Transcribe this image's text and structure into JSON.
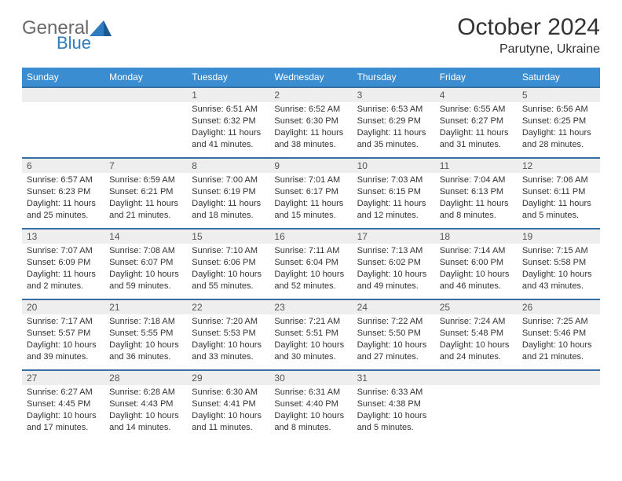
{
  "header": {
    "logo_general": "General",
    "logo_blue": "Blue",
    "month_title": "October 2024",
    "location": "Parutyne, Ukraine"
  },
  "colors": {
    "header_bg": "#3a8dd0",
    "header_text": "#ffffff",
    "row_divider": "#356fa3",
    "daynum_bg": "#eeeeee",
    "body_text": "#333333",
    "logo_gray": "#6a6a6a",
    "logo_blue": "#2f7bbf",
    "page_bg": "#ffffff"
  },
  "weekdays": [
    "Sunday",
    "Monday",
    "Tuesday",
    "Wednesday",
    "Thursday",
    "Friday",
    "Saturday"
  ],
  "weeks": [
    [
      null,
      null,
      {
        "n": "1",
        "sunrise": "Sunrise: 6:51 AM",
        "sunset": "Sunset: 6:32 PM",
        "dl1": "Daylight: 11 hours",
        "dl2": "and 41 minutes."
      },
      {
        "n": "2",
        "sunrise": "Sunrise: 6:52 AM",
        "sunset": "Sunset: 6:30 PM",
        "dl1": "Daylight: 11 hours",
        "dl2": "and 38 minutes."
      },
      {
        "n": "3",
        "sunrise": "Sunrise: 6:53 AM",
        "sunset": "Sunset: 6:29 PM",
        "dl1": "Daylight: 11 hours",
        "dl2": "and 35 minutes."
      },
      {
        "n": "4",
        "sunrise": "Sunrise: 6:55 AM",
        "sunset": "Sunset: 6:27 PM",
        "dl1": "Daylight: 11 hours",
        "dl2": "and 31 minutes."
      },
      {
        "n": "5",
        "sunrise": "Sunrise: 6:56 AM",
        "sunset": "Sunset: 6:25 PM",
        "dl1": "Daylight: 11 hours",
        "dl2": "and 28 minutes."
      }
    ],
    [
      {
        "n": "6",
        "sunrise": "Sunrise: 6:57 AM",
        "sunset": "Sunset: 6:23 PM",
        "dl1": "Daylight: 11 hours",
        "dl2": "and 25 minutes."
      },
      {
        "n": "7",
        "sunrise": "Sunrise: 6:59 AM",
        "sunset": "Sunset: 6:21 PM",
        "dl1": "Daylight: 11 hours",
        "dl2": "and 21 minutes."
      },
      {
        "n": "8",
        "sunrise": "Sunrise: 7:00 AM",
        "sunset": "Sunset: 6:19 PM",
        "dl1": "Daylight: 11 hours",
        "dl2": "and 18 minutes."
      },
      {
        "n": "9",
        "sunrise": "Sunrise: 7:01 AM",
        "sunset": "Sunset: 6:17 PM",
        "dl1": "Daylight: 11 hours",
        "dl2": "and 15 minutes."
      },
      {
        "n": "10",
        "sunrise": "Sunrise: 7:03 AM",
        "sunset": "Sunset: 6:15 PM",
        "dl1": "Daylight: 11 hours",
        "dl2": "and 12 minutes."
      },
      {
        "n": "11",
        "sunrise": "Sunrise: 7:04 AM",
        "sunset": "Sunset: 6:13 PM",
        "dl1": "Daylight: 11 hours",
        "dl2": "and 8 minutes."
      },
      {
        "n": "12",
        "sunrise": "Sunrise: 7:06 AM",
        "sunset": "Sunset: 6:11 PM",
        "dl1": "Daylight: 11 hours",
        "dl2": "and 5 minutes."
      }
    ],
    [
      {
        "n": "13",
        "sunrise": "Sunrise: 7:07 AM",
        "sunset": "Sunset: 6:09 PM",
        "dl1": "Daylight: 11 hours",
        "dl2": "and 2 minutes."
      },
      {
        "n": "14",
        "sunrise": "Sunrise: 7:08 AM",
        "sunset": "Sunset: 6:07 PM",
        "dl1": "Daylight: 10 hours",
        "dl2": "and 59 minutes."
      },
      {
        "n": "15",
        "sunrise": "Sunrise: 7:10 AM",
        "sunset": "Sunset: 6:06 PM",
        "dl1": "Daylight: 10 hours",
        "dl2": "and 55 minutes."
      },
      {
        "n": "16",
        "sunrise": "Sunrise: 7:11 AM",
        "sunset": "Sunset: 6:04 PM",
        "dl1": "Daylight: 10 hours",
        "dl2": "and 52 minutes."
      },
      {
        "n": "17",
        "sunrise": "Sunrise: 7:13 AM",
        "sunset": "Sunset: 6:02 PM",
        "dl1": "Daylight: 10 hours",
        "dl2": "and 49 minutes."
      },
      {
        "n": "18",
        "sunrise": "Sunrise: 7:14 AM",
        "sunset": "Sunset: 6:00 PM",
        "dl1": "Daylight: 10 hours",
        "dl2": "and 46 minutes."
      },
      {
        "n": "19",
        "sunrise": "Sunrise: 7:15 AM",
        "sunset": "Sunset: 5:58 PM",
        "dl1": "Daylight: 10 hours",
        "dl2": "and 43 minutes."
      }
    ],
    [
      {
        "n": "20",
        "sunrise": "Sunrise: 7:17 AM",
        "sunset": "Sunset: 5:57 PM",
        "dl1": "Daylight: 10 hours",
        "dl2": "and 39 minutes."
      },
      {
        "n": "21",
        "sunrise": "Sunrise: 7:18 AM",
        "sunset": "Sunset: 5:55 PM",
        "dl1": "Daylight: 10 hours",
        "dl2": "and 36 minutes."
      },
      {
        "n": "22",
        "sunrise": "Sunrise: 7:20 AM",
        "sunset": "Sunset: 5:53 PM",
        "dl1": "Daylight: 10 hours",
        "dl2": "and 33 minutes."
      },
      {
        "n": "23",
        "sunrise": "Sunrise: 7:21 AM",
        "sunset": "Sunset: 5:51 PM",
        "dl1": "Daylight: 10 hours",
        "dl2": "and 30 minutes."
      },
      {
        "n": "24",
        "sunrise": "Sunrise: 7:22 AM",
        "sunset": "Sunset: 5:50 PM",
        "dl1": "Daylight: 10 hours",
        "dl2": "and 27 minutes."
      },
      {
        "n": "25",
        "sunrise": "Sunrise: 7:24 AM",
        "sunset": "Sunset: 5:48 PM",
        "dl1": "Daylight: 10 hours",
        "dl2": "and 24 minutes."
      },
      {
        "n": "26",
        "sunrise": "Sunrise: 7:25 AM",
        "sunset": "Sunset: 5:46 PM",
        "dl1": "Daylight: 10 hours",
        "dl2": "and 21 minutes."
      }
    ],
    [
      {
        "n": "27",
        "sunrise": "Sunrise: 6:27 AM",
        "sunset": "Sunset: 4:45 PM",
        "dl1": "Daylight: 10 hours",
        "dl2": "and 17 minutes."
      },
      {
        "n": "28",
        "sunrise": "Sunrise: 6:28 AM",
        "sunset": "Sunset: 4:43 PM",
        "dl1": "Daylight: 10 hours",
        "dl2": "and 14 minutes."
      },
      {
        "n": "29",
        "sunrise": "Sunrise: 6:30 AM",
        "sunset": "Sunset: 4:41 PM",
        "dl1": "Daylight: 10 hours",
        "dl2": "and 11 minutes."
      },
      {
        "n": "30",
        "sunrise": "Sunrise: 6:31 AM",
        "sunset": "Sunset: 4:40 PM",
        "dl1": "Daylight: 10 hours",
        "dl2": "and 8 minutes."
      },
      {
        "n": "31",
        "sunrise": "Sunrise: 6:33 AM",
        "sunset": "Sunset: 4:38 PM",
        "dl1": "Daylight: 10 hours",
        "dl2": "and 5 minutes."
      },
      null,
      null
    ]
  ]
}
